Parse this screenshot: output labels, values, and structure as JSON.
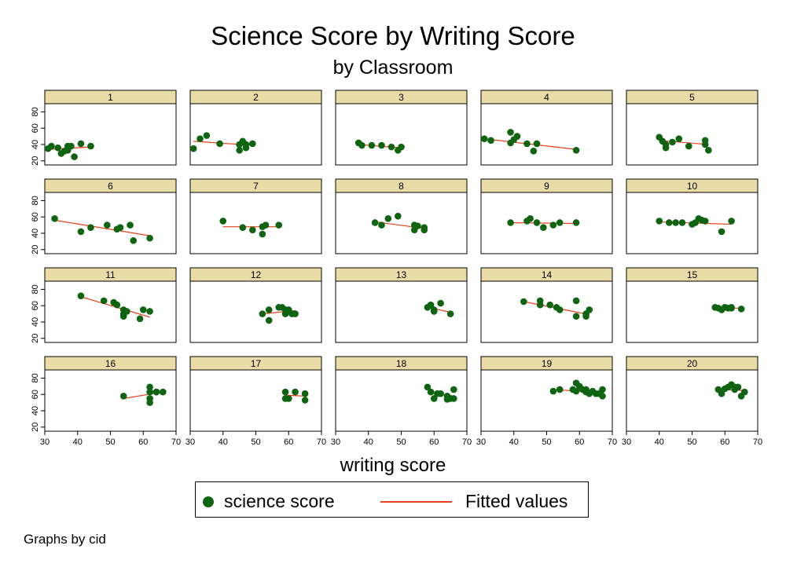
{
  "chart_data": {
    "type": "scatter",
    "title": "Science Score by Writing Score",
    "subtitle": "by Classroom",
    "xlabel": "writing score",
    "ylabel": "",
    "note": "Graphs by cid",
    "xlim": [
      30,
      70
    ],
    "ylim": [
      15,
      90
    ],
    "xticks": [
      30,
      40,
      50,
      60,
      70
    ],
    "yticks": [
      20,
      40,
      60,
      80
    ],
    "grid": false,
    "legend_position": "bottom",
    "legend": [
      "science score",
      "Fitted values"
    ],
    "colors": {
      "points": "#0f6412",
      "fit": "#e8401b",
      "strip": "#eadca6"
    },
    "panels": [
      {
        "label": "1",
        "x": [
          31,
          32,
          34,
          35,
          36,
          37,
          37,
          38,
          39,
          41,
          44
        ],
        "y": [
          35,
          38,
          36,
          29,
          32,
          38,
          33,
          38,
          25,
          41,
          38
        ],
        "fit": [
          [
            31,
            34
          ],
          [
            44,
            37
          ]
        ]
      },
      {
        "label": "2",
        "x": [
          31,
          33,
          35,
          39,
          45,
          45,
          46,
          47,
          47,
          49
        ],
        "y": [
          35,
          47,
          51,
          41,
          33,
          40,
          44,
          36,
          40,
          41
        ],
        "fit": [
          [
            31,
            44
          ],
          [
            49,
            39
          ]
        ]
      },
      {
        "label": "3",
        "x": [
          37,
          38,
          41,
          44,
          47,
          49,
          50
        ],
        "y": [
          42,
          39,
          39,
          39,
          37,
          33,
          37
        ],
        "fit": [
          [
            37,
            40
          ],
          [
            50,
            36
          ]
        ]
      },
      {
        "label": "4",
        "x": [
          31,
          33,
          39,
          39,
          40,
          41,
          41,
          44,
          46,
          47,
          59
        ],
        "y": [
          47,
          45,
          55,
          42,
          46,
          50,
          50,
          41,
          32,
          41,
          33
        ],
        "fit": [
          [
            31,
            47
          ],
          [
            59,
            34
          ]
        ]
      },
      {
        "label": "5",
        "x": [
          40,
          41,
          42,
          42,
          44,
          46,
          49,
          54,
          54,
          55
        ],
        "y": [
          49,
          44,
          40,
          36,
          43,
          47,
          38,
          45,
          40,
          33
        ],
        "fit": [
          [
            40,
            45
          ],
          [
            55,
            40
          ]
        ]
      },
      {
        "label": "6",
        "x": [
          33,
          41,
          44,
          49,
          52,
          53,
          56,
          57,
          62
        ],
        "y": [
          58,
          42,
          47,
          50,
          45,
          47,
          50,
          31,
          34
        ],
        "fit": [
          [
            33,
            56
          ],
          [
            62,
            37
          ]
        ]
      },
      {
        "label": "7",
        "x": [
          40,
          46,
          49,
          52,
          52,
          53,
          57
        ],
        "y": [
          55,
          47,
          44,
          48,
          39,
          50,
          50
        ],
        "fit": [
          [
            40,
            48
          ],
          [
            57,
            48
          ]
        ]
      },
      {
        "label": "8",
        "x": [
          42,
          44,
          46,
          49,
          54,
          54,
          55,
          57,
          57
        ],
        "y": [
          53,
          50,
          58,
          61,
          50,
          44,
          49,
          44,
          47
        ],
        "fit": [
          [
            42,
            54
          ],
          [
            57,
            46
          ]
        ]
      },
      {
        "label": "9",
        "x": [
          39,
          44,
          45,
          47,
          49,
          52,
          54,
          59
        ],
        "y": [
          53,
          55,
          58,
          53,
          47,
          50,
          53,
          53
        ],
        "fit": [
          [
            39,
            53
          ],
          [
            59,
            52
          ]
        ]
      },
      {
        "label": "10",
        "x": [
          40,
          43,
          45,
          47,
          50,
          51,
          52,
          53,
          54,
          59,
          62
        ],
        "y": [
          55,
          53,
          53,
          53,
          51,
          53,
          58,
          56,
          55,
          42,
          55
        ],
        "fit": [
          [
            40,
            54
          ],
          [
            62,
            51
          ]
        ]
      },
      {
        "label": "11",
        "x": [
          41,
          48,
          51,
          52,
          54,
          54,
          54,
          55,
          59,
          60,
          62
        ],
        "y": [
          72,
          66,
          64,
          61,
          55,
          50,
          47,
          53,
          44,
          55,
          53
        ],
        "fit": [
          [
            41,
            71
          ],
          [
            62,
            46
          ]
        ]
      },
      {
        "label": "12",
        "x": [
          52,
          54,
          54,
          57,
          58,
          59,
          59,
          60,
          61,
          62
        ],
        "y": [
          50,
          42,
          55,
          58,
          58,
          55,
          50,
          55,
          50,
          50
        ],
        "fit": [
          [
            52,
            50
          ],
          [
            62,
            54
          ]
        ]
      },
      {
        "label": "13",
        "x": [
          58,
          59,
          60,
          60,
          62,
          65
        ],
        "y": [
          58,
          61,
          55,
          53,
          63,
          50
        ],
        "fit": [
          [
            58,
            58
          ],
          [
            65,
            52
          ]
        ]
      },
      {
        "label": "14",
        "x": [
          43,
          48,
          48,
          51,
          53,
          54,
          59,
          59,
          62,
          62,
          63
        ],
        "y": [
          65,
          66,
          61,
          61,
          58,
          55,
          66,
          47,
          47,
          50,
          55
        ],
        "fit": [
          [
            43,
            65
          ],
          [
            63,
            49
          ]
        ]
      },
      {
        "label": "15",
        "x": [
          57,
          58,
          59,
          60,
          61,
          62,
          62,
          65
        ],
        "y": [
          58,
          57,
          55,
          58,
          57,
          58,
          57,
          56
        ],
        "fit": [
          [
            57,
            57
          ],
          [
            65,
            57
          ]
        ]
      },
      {
        "label": "16",
        "x": [
          54,
          62,
          62,
          62,
          62,
          64,
          64,
          66
        ],
        "y": [
          58,
          69,
          63,
          55,
          50,
          63,
          63,
          63
        ],
        "fit": [
          [
            54,
            55
          ],
          [
            66,
            63
          ]
        ]
      },
      {
        "label": "17",
        "x": [
          59,
          59,
          60,
          62,
          65,
          65
        ],
        "y": [
          63,
          55,
          55,
          63,
          61,
          53
        ],
        "fit": [
          [
            59,
            59
          ],
          [
            65,
            58
          ]
        ]
      },
      {
        "label": "18",
        "x": [
          58,
          59,
          60,
          61,
          62,
          64,
          64,
          65,
          66,
          66
        ],
        "y": [
          69,
          63,
          55,
          61,
          61,
          58,
          54,
          55,
          66,
          55
        ],
        "fit": [
          [
            58,
            62
          ],
          [
            66,
            58
          ]
        ]
      },
      {
        "label": "19",
        "x": [
          52,
          54,
          58,
          59,
          59,
          60,
          61,
          62,
          62,
          63,
          64,
          65,
          66,
          67,
          67
        ],
        "y": [
          64,
          66,
          66,
          74,
          64,
          70,
          66,
          66,
          63,
          61,
          64,
          61,
          61,
          66,
          58
        ],
        "fit": [
          [
            52,
            66
          ],
          [
            67,
            62
          ]
        ]
      },
      {
        "label": "20",
        "x": [
          58,
          59,
          60,
          61,
          62,
          63,
          63,
          64,
          65,
          66
        ],
        "y": [
          66,
          61,
          67,
          69,
          72,
          66,
          69,
          69,
          58,
          63
        ],
        "fit": [
          [
            58,
            66
          ],
          [
            66,
            65
          ]
        ]
      }
    ]
  }
}
